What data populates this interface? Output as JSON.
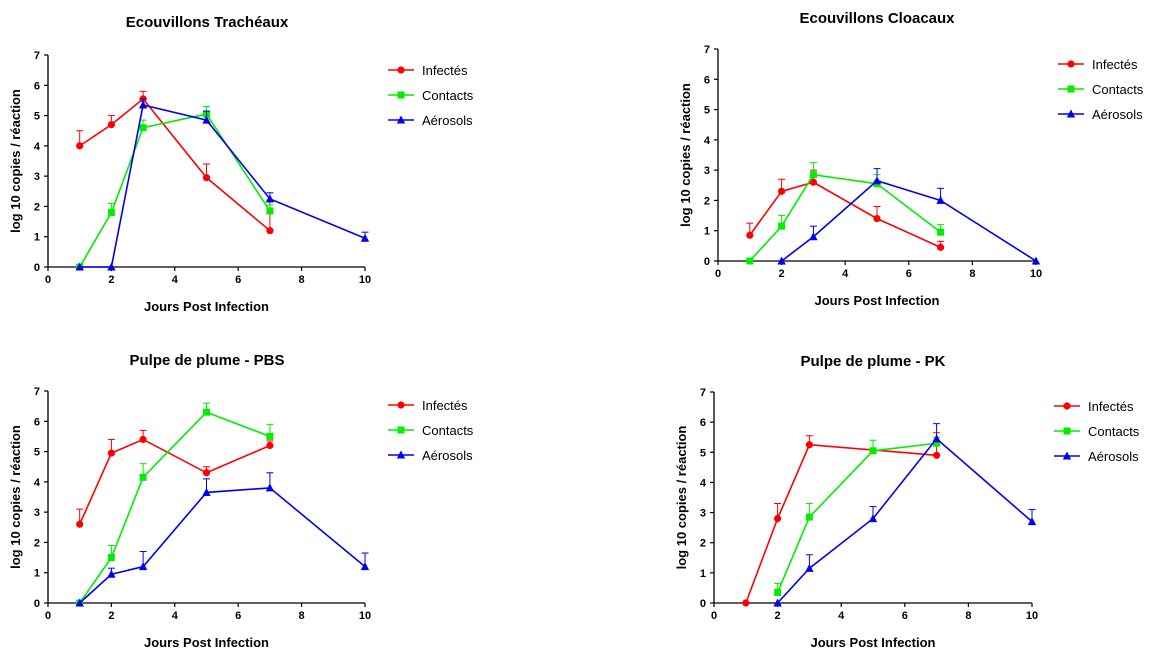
{
  "chart_data": [
    {
      "type": "line",
      "title": "Ecouvillons Trachéaux",
      "xlabel": "Jours Post Infection",
      "ylabel": "log 10 copies  / réaction",
      "xlim": [
        0,
        10
      ],
      "ylim": [
        0,
        7
      ],
      "xticks": [
        "0",
        "2",
        "4",
        "6",
        "8",
        "10"
      ],
      "yticks": [
        "0",
        "1",
        "2",
        "3",
        "4",
        "5",
        "6",
        "7"
      ],
      "grid": false,
      "legend_position": "right",
      "series": [
        {
          "name": "Infectés",
          "color": "#ff0000",
          "marker": "circle",
          "x": [
            1,
            2,
            3,
            5,
            7
          ],
          "y": [
            4.0,
            4.7,
            5.55,
            2.95,
            1.2
          ],
          "err": [
            0.5,
            0.3,
            0.25,
            0.45,
            0.95
          ]
        },
        {
          "name": "Contacts",
          "color": "#00ee00",
          "marker": "square",
          "x": [
            1,
            2,
            3,
            5,
            7
          ],
          "y": [
            0,
            1.8,
            4.6,
            5.05,
            1.85
          ],
          "err": [
            0,
            0.3,
            0.25,
            0.25,
            0.2
          ]
        },
        {
          "name": "Aérosols",
          "color": "#0000ee",
          "marker": "triangle",
          "x": [
            1,
            2,
            3,
            5,
            7,
            10
          ],
          "y": [
            0,
            0,
            5.35,
            4.85,
            2.25,
            0.95
          ],
          "err": [
            0,
            0,
            0.2,
            0.3,
            0.2,
            0.2
          ]
        }
      ]
    },
    {
      "type": "line",
      "title": "Ecouvillons Cloacaux",
      "xlabel": "Jours Post Infection",
      "ylabel": "log 10 copies  / réaction",
      "xlim": [
        0,
        10
      ],
      "ylim": [
        0,
        7
      ],
      "xticks": [
        "0",
        "2",
        "4",
        "6",
        "8",
        "10"
      ],
      "yticks": [
        "0",
        "1",
        "2",
        "3",
        "4",
        "5",
        "6",
        "7"
      ],
      "grid": false,
      "legend_position": "right",
      "series": [
        {
          "name": "Infectés",
          "color": "#ff0000",
          "marker": "circle",
          "x": [
            1,
            2,
            3,
            5,
            7
          ],
          "y": [
            0.85,
            2.3,
            2.6,
            1.4,
            0.45
          ],
          "err": [
            0.4,
            0.4,
            0.4,
            0.4,
            0.2
          ]
        },
        {
          "name": "Contacts",
          "color": "#00ee00",
          "marker": "square",
          "x": [
            1,
            2,
            3,
            5,
            7
          ],
          "y": [
            0,
            1.15,
            2.85,
            2.55,
            0.95
          ],
          "err": [
            0,
            0.35,
            0.4,
            0.3,
            0.25
          ]
        },
        {
          "name": "Aérosols",
          "color": "#0000ee",
          "marker": "triangle",
          "x": [
            2,
            3,
            5,
            7,
            10
          ],
          "y": [
            0,
            0.8,
            2.65,
            2.0,
            0
          ],
          "err": [
            0,
            0.35,
            0.4,
            0.4,
            0
          ]
        }
      ]
    },
    {
      "type": "line",
      "title": "Pulpe de plume - PBS",
      "xlabel": "Jours Post Infection",
      "ylabel": "log 10 copies  / réaction",
      "xlim": [
        0,
        10
      ],
      "ylim": [
        0,
        7
      ],
      "xticks": [
        "0",
        "2",
        "4",
        "6",
        "8",
        "10"
      ],
      "yticks": [
        "0",
        "1",
        "2",
        "3",
        "4",
        "5",
        "6",
        "7"
      ],
      "grid": false,
      "legend_position": "right",
      "series": [
        {
          "name": "Infectés",
          "color": "#ff0000",
          "marker": "circle",
          "x": [
            1,
            2,
            3,
            5,
            7
          ],
          "y": [
            2.6,
            4.95,
            5.4,
            4.3,
            5.2
          ],
          "err": [
            0.5,
            0.45,
            0.3,
            0.2,
            0.15
          ]
        },
        {
          "name": "Contacts",
          "color": "#00ee00",
          "marker": "square",
          "x": [
            1,
            2,
            3,
            5,
            7
          ],
          "y": [
            0,
            1.5,
            4.15,
            6.3,
            5.5
          ],
          "err": [
            0,
            0.4,
            0.45,
            0.3,
            0.4
          ]
        },
        {
          "name": "Aérosols",
          "color": "#0000ee",
          "marker": "triangle",
          "x": [
            1,
            2,
            3,
            5,
            7,
            10
          ],
          "y": [
            0,
            0.95,
            1.2,
            3.65,
            3.8,
            1.2
          ],
          "err": [
            0,
            0.2,
            0.5,
            0.45,
            0.5,
            0.45
          ]
        }
      ]
    },
    {
      "type": "line",
      "title": "Pulpe de plume - PK",
      "xlabel": "Jours Post Infection",
      "ylabel": "log 10 copies  / réaction",
      "xlim": [
        0,
        10
      ],
      "ylim": [
        0,
        7
      ],
      "xticks": [
        "0",
        "2",
        "4",
        "6",
        "8",
        "10"
      ],
      "yticks": [
        "0",
        "1",
        "2",
        "3",
        "4",
        "5",
        "6",
        "7"
      ],
      "grid": false,
      "legend_position": "right",
      "series": [
        {
          "name": "Infectés",
          "color": "#ff0000",
          "marker": "circle",
          "x": [
            1,
            2,
            3,
            7
          ],
          "y": [
            0,
            2.8,
            5.25,
            4.9
          ],
          "err": [
            0,
            0.5,
            0.3,
            0.75
          ]
        },
        {
          "name": "Contacts",
          "color": "#00ee00",
          "marker": "square",
          "x": [
            2,
            3,
            5,
            7
          ],
          "y": [
            0.35,
            2.85,
            5.05,
            5.3
          ],
          "err": [
            0.3,
            0.45,
            0.35,
            0.2
          ]
        },
        {
          "name": "Aérosols",
          "color": "#0000ee",
          "marker": "triangle",
          "x": [
            2,
            3,
            5,
            7,
            10
          ],
          "y": [
            0,
            1.15,
            2.8,
            5.45,
            2.7
          ],
          "err": [
            0,
            0.45,
            0.4,
            0.5,
            0.4
          ]
        }
      ]
    }
  ]
}
